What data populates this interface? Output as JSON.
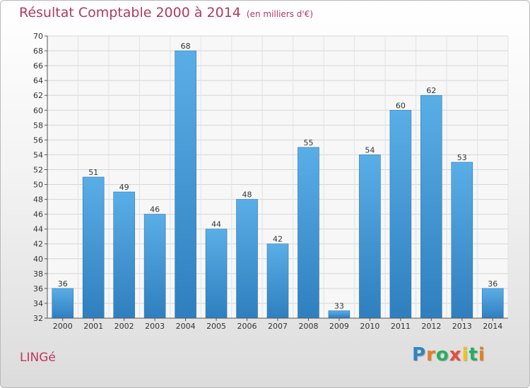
{
  "chart_data": {
    "type": "bar",
    "title": "Résultat Comptable 2000 à 2014",
    "subtitle": "(en milliers d'€)",
    "categories": [
      "2000",
      "2001",
      "2002",
      "2003",
      "2004",
      "2005",
      "2006",
      "2007",
      "2008",
      "2009",
      "2010",
      "2011",
      "2012",
      "2013",
      "2014"
    ],
    "values": [
      36,
      51,
      49,
      46,
      68,
      44,
      48,
      42,
      55,
      33,
      54,
      60,
      62,
      53,
      36
    ],
    "ylim": [
      32,
      70
    ],
    "ytick_step": 2,
    "xlabel": "",
    "ylabel": "",
    "grid": true,
    "bar_color": "#4aa3df"
  },
  "commune": "LINGé",
  "brand": {
    "letters": [
      "P",
      "r",
      "o",
      "x",
      "i",
      "t",
      "i"
    ],
    "colors": [
      "#2e86c1",
      "#e67e22",
      "#27ae60",
      "#e74c3c",
      "#f1c40f",
      "#27ae60",
      "#e67e22"
    ]
  }
}
